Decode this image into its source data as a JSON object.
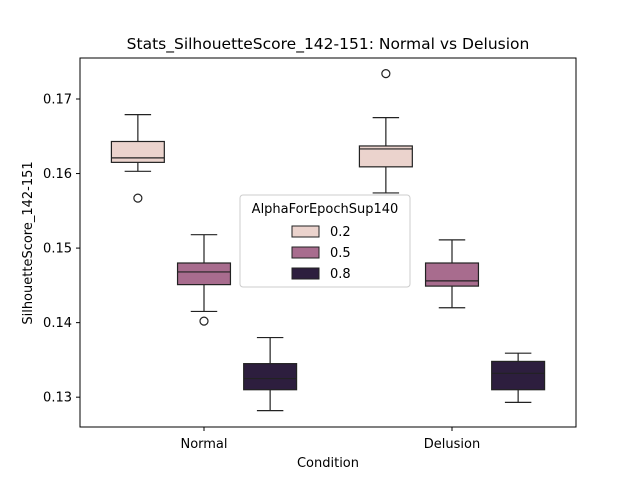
{
  "chart_data": {
    "type": "box",
    "title": "Stats_SilhouetteScore_142-151: Normal vs Delusion",
    "xlabel": "Condition",
    "ylabel": "SilhouetteScore_142-151",
    "categories": [
      "Normal",
      "Delusion"
    ],
    "ylim": [
      0.126,
      0.1755
    ],
    "yticks": [
      0.13,
      0.14,
      0.15,
      0.16,
      0.17
    ],
    "ytick_labels": [
      "0.13",
      "0.14",
      "0.15",
      "0.16",
      "0.17"
    ],
    "grid": false,
    "legend": {
      "title": "AlphaForEpochSup140",
      "placement": "center",
      "entries": [
        "0.2",
        "0.5",
        "0.8"
      ]
    },
    "series": [
      {
        "name": "0.2",
        "color": "#ebd3cd",
        "boxes": [
          {
            "category": "Normal",
            "whisker_low": 0.1603,
            "q1": 0.1615,
            "median": 0.1621,
            "q3": 0.1643,
            "whisker_high": 0.1679,
            "outliers": [
              0.1567
            ]
          },
          {
            "category": "Delusion",
            "whisker_low": 0.1574,
            "q1": 0.1609,
            "median": 0.1633,
            "q3": 0.1637,
            "whisker_high": 0.1675,
            "outliers": [
              0.1734
            ]
          }
        ]
      },
      {
        "name": "0.5",
        "color": "#a86c8e",
        "boxes": [
          {
            "category": "Normal",
            "whisker_low": 0.1415,
            "q1": 0.1451,
            "median": 0.1468,
            "q3": 0.148,
            "whisker_high": 0.1518,
            "outliers": [
              0.1402
            ]
          },
          {
            "category": "Delusion",
            "whisker_low": 0.142,
            "q1": 0.1449,
            "median": 0.1456,
            "q3": 0.148,
            "whisker_high": 0.1511,
            "outliers": []
          }
        ]
      },
      {
        "name": "0.8",
        "color": "#2d1e3e",
        "boxes": [
          {
            "category": "Normal",
            "whisker_low": 0.1282,
            "q1": 0.131,
            "median": 0.1325,
            "q3": 0.1345,
            "whisker_high": 0.138,
            "outliers": []
          },
          {
            "category": "Delusion",
            "whisker_low": 0.1293,
            "q1": 0.131,
            "median": 0.1332,
            "q3": 0.1348,
            "whisker_high": 0.1359,
            "outliers": []
          }
        ]
      }
    ]
  }
}
